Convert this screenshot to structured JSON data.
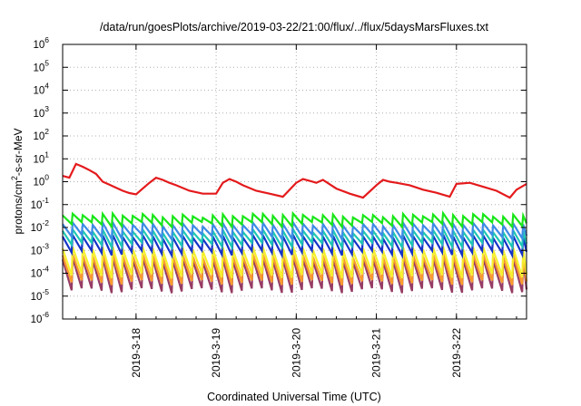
{
  "chart_data": {
    "type": "line",
    "title": "/data/run/goesPlots/archive/2019-03-22/21:00/flux/../flux/5daysMarsFluxes.txt",
    "xlabel": "Coordinated Universal Time (UTC)",
    "ylabel_parts": [
      "protons/cm",
      "2",
      "-s-sr-MeV"
    ],
    "y_scale": "log",
    "ylim": [
      1e-06,
      1000000.0
    ],
    "y_ticks": [
      {
        "base": "10",
        "exp": "-6",
        "value": 1e-06
      },
      {
        "base": "10",
        "exp": "-5",
        "value": 1e-05
      },
      {
        "base": "10",
        "exp": "-4",
        "value": 0.0001
      },
      {
        "base": "10",
        "exp": "-3",
        "value": 0.001
      },
      {
        "base": "10",
        "exp": "-2",
        "value": 0.01
      },
      {
        "base": "10",
        "exp": "-1",
        "value": 0.1
      },
      {
        "base": "10",
        "exp": "0",
        "value": 1
      },
      {
        "base": "10",
        "exp": "1",
        "value": 10
      },
      {
        "base": "10",
        "exp": "2",
        "value": 100
      },
      {
        "base": "10",
        "exp": "3",
        "value": 1000
      },
      {
        "base": "10",
        "exp": "4",
        "value": 10000
      },
      {
        "base": "10",
        "exp": "5",
        "value": 100000
      },
      {
        "base": "10",
        "exp": "6",
        "value": 1000000
      }
    ],
    "xlim": [
      "2019-03-17 02:00",
      "2019-03-22 21:00"
    ],
    "x_ticks": [
      {
        "label": "2019-3-18",
        "value": "2019-03-18 00:00"
      },
      {
        "label": "2019-3-19",
        "value": "2019-03-19 00:00"
      },
      {
        "label": "2019-3-20",
        "value": "2019-03-20 00:00"
      },
      {
        "label": "2019-3-21",
        "value": "2019-03-21 00:00"
      },
      {
        "label": "2019-3-22",
        "value": "2019-03-22 00:00"
      }
    ],
    "grid": true,
    "series": [
      {
        "color": "#e41a1c",
        "x": [
          "2019-03-17 02:00",
          "2019-03-17 04:00",
          "2019-03-17 06:00",
          "2019-03-17 08:00",
          "2019-03-17 10:00",
          "2019-03-17 12:00",
          "2019-03-17 14:00",
          "2019-03-17 16:00",
          "2019-03-17 18:00",
          "2019-03-17 20:00",
          "2019-03-17 22:00",
          "2019-03-18 00:00",
          "2019-03-18 02:00",
          "2019-03-18 04:00",
          "2019-03-18 06:00",
          "2019-03-18 08:00",
          "2019-03-18 10:00",
          "2019-03-18 12:00",
          "2019-03-18 16:00",
          "2019-03-18 20:00",
          "2019-03-19 00:00",
          "2019-03-19 02:00",
          "2019-03-19 04:00",
          "2019-03-19 06:00",
          "2019-03-19 08:00",
          "2019-03-19 12:00",
          "2019-03-19 16:00",
          "2019-03-19 20:00",
          "2019-03-20 00:00",
          "2019-03-20 02:00",
          "2019-03-20 04:00",
          "2019-03-20 06:00",
          "2019-03-20 08:00",
          "2019-03-20 12:00",
          "2019-03-20 16:00",
          "2019-03-20 20:00",
          "2019-03-21 00:00",
          "2019-03-21 02:00",
          "2019-03-21 04:00",
          "2019-03-21 06:00",
          "2019-03-21 10:00",
          "2019-03-21 14:00",
          "2019-03-21 18:00",
          "2019-03-21 22:00",
          "2019-03-22 00:00",
          "2019-03-22 04:00",
          "2019-03-22 08:00",
          "2019-03-22 12:00",
          "2019-03-22 16:00",
          "2019-03-22 18:00",
          "2019-03-22 21:00"
        ],
        "y": [
          1.8,
          1.5,
          6.0,
          4.5,
          3.2,
          2.2,
          1.0,
          0.75,
          0.55,
          0.4,
          0.32,
          0.28,
          0.5,
          0.9,
          1.5,
          1.2,
          0.9,
          0.7,
          0.4,
          0.3,
          0.3,
          0.9,
          1.3,
          1.0,
          0.7,
          0.4,
          0.3,
          0.22,
          0.9,
          1.3,
          1.1,
          0.9,
          1.2,
          0.5,
          0.3,
          0.2,
          0.7,
          1.2,
          1.0,
          0.9,
          0.7,
          0.45,
          0.33,
          0.22,
          0.8,
          0.9,
          0.6,
          0.4,
          0.2,
          0.45,
          0.8
        ]
      },
      {
        "color": "#19e619",
        "x": [
          "2019-03-17 02:00",
          "2019-03-22 21:00"
        ],
        "y": [
          0.03,
          0.03
        ],
        "period_hours": 3,
        "low": 0.014,
        "high": 0.034
      },
      {
        "color": "#3c8ce6",
        "x": [
          "2019-03-17 02:00",
          "2019-03-22 21:00"
        ],
        "y": [
          0.012,
          0.012
        ],
        "period_hours": 3,
        "low": 0.004,
        "high": 0.014
      },
      {
        "color": "#1ec8b4",
        "x": [
          "2019-03-17 02:00",
          "2019-03-22 21:00"
        ],
        "y": [
          0.006,
          0.006
        ],
        "period_hours": 3,
        "low": 0.0018,
        "high": 0.007
      },
      {
        "color": "#1432c8",
        "x": [
          "2019-03-17 02:00",
          "2019-03-22 21:00"
        ],
        "y": [
          0.003,
          0.003
        ],
        "period_hours": 3,
        "low": 0.0008,
        "high": 0.004
      },
      {
        "color": "#f5f02d",
        "x": [
          "2019-03-17 02:00",
          "2019-03-22 21:00"
        ],
        "y": [
          0.0008,
          0.0008
        ],
        "period_hours": 3,
        "low": 8e-05,
        "high": 0.0012
      },
      {
        "color": "#fa9b2d",
        "x": [
          "2019-03-17 02:00",
          "2019-03-22 21:00"
        ],
        "y": [
          0.0004,
          0.0004
        ],
        "period_hours": 3,
        "low": 4e-05,
        "high": 0.0006
      },
      {
        "color": "#963c64",
        "x": [
          "2019-03-17 02:00",
          "2019-03-22 21:00"
        ],
        "y": [
          0.0003,
          0.0003
        ],
        "period_hours": 3,
        "low": 1.8e-05,
        "high": 0.0004
      }
    ]
  }
}
